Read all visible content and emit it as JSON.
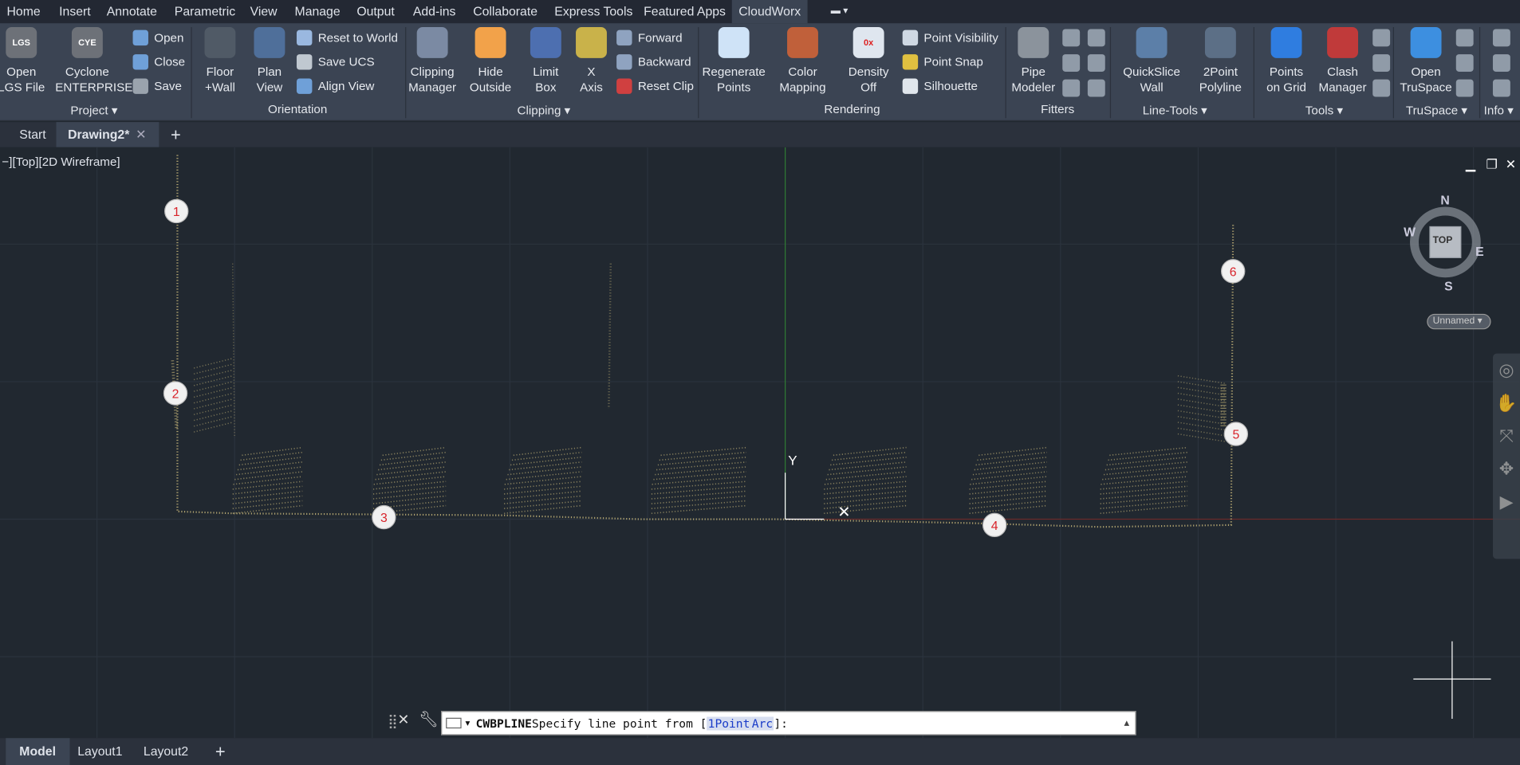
{
  "menu": {
    "items": [
      "Home",
      "Insert",
      "Annotate",
      "Parametric",
      "View",
      "Manage",
      "Output",
      "Add-ins",
      "Collaborate",
      "Express Tools",
      "Featured Apps",
      "CloudWorx"
    ],
    "active": "CloudWorx"
  },
  "ribbon": {
    "panels": [
      {
        "label": "Project ▾"
      },
      {
        "label": "Orientation"
      },
      {
        "label": "Clipping ▾"
      },
      {
        "label": "Rendering"
      },
      {
        "label": "Fitters"
      },
      {
        "label": "Line-Tools ▾"
      },
      {
        "label": "Tools ▾"
      },
      {
        "label": "TruSpace ▾"
      },
      {
        "label": "Info ▾"
      }
    ],
    "big_buttons": [
      {
        "l1": "Open",
        "l2": "LGS File",
        "icon": "lgs-icon",
        "badge": "LGS",
        "color": "#6d7178"
      },
      {
        "l1": "Cyclone",
        "l2": "ENTERPRISE",
        "icon": "cyclone-icon",
        "badge": "CYE",
        "color": "#6d7178"
      },
      {
        "l1": "Floor",
        "l2": "+Wall",
        "icon": "floor-wall-icon",
        "badge": "",
        "color": "#505a66"
      },
      {
        "l1": "Plan",
        "l2": "View",
        "icon": "plan-view-icon",
        "badge": "",
        "color": "#4f6f9a"
      },
      {
        "l1": "Clipping",
        "l2": "Manager",
        "icon": "clipping-manager-icon",
        "badge": "",
        "color": "#7b8aa3"
      },
      {
        "l1": "Hide",
        "l2": "Outside",
        "icon": "hide-outside-icon",
        "badge": "",
        "color": "#f2a24a"
      },
      {
        "l1": "Limit",
        "l2": "Box",
        "icon": "limit-box-icon",
        "badge": "",
        "color": "#4d6fb0"
      },
      {
        "l1": "X",
        "l2": "Axis",
        "icon": "x-axis-icon",
        "badge": "",
        "color": "#c9b24a"
      },
      {
        "l1": "Regenerate",
        "l2": "Points",
        "icon": "regenerate-points-icon",
        "badge": "",
        "color": "#cfe3f7"
      },
      {
        "l1": "Color",
        "l2": "Mapping",
        "icon": "color-mapping-icon",
        "badge": "",
        "color": "#c0603a"
      },
      {
        "l1": "Density",
        "l2": "Off",
        "icon": "density-off-icon",
        "badge": "0x",
        "color": "#dfe6ef"
      },
      {
        "l1": "Pipe",
        "l2": "Modeler",
        "icon": "pipe-modeler-icon",
        "badge": "",
        "color": "#8b939c"
      },
      {
        "l1": "QuickSlice",
        "l2": "Wall",
        "icon": "quickslice-wall-icon",
        "badge": "",
        "color": "#5c7fa8"
      },
      {
        "l1": "2Point",
        "l2": "Polyline",
        "icon": "polyline-icon",
        "badge": "",
        "color": "#5c6f86"
      },
      {
        "l1": "Points",
        "l2": "on Grid",
        "icon": "points-on-grid-icon",
        "badge": "",
        "color": "#2f7de0"
      },
      {
        "l1": "Clash",
        "l2": "Manager",
        "icon": "clash-manager-icon",
        "badge": "",
        "color": "#c03a3a"
      },
      {
        "l1": "Open",
        "l2": "TruSpace",
        "icon": "truspace-icon",
        "badge": "",
        "color": "#3d8fe0"
      }
    ],
    "small_buttons": [
      {
        "label": "Open",
        "icon": "open-icon"
      },
      {
        "label": "Close",
        "icon": "close-file-icon"
      },
      {
        "label": "Save",
        "icon": "save-icon"
      },
      {
        "label": "Reset to World",
        "icon": "reset-world-icon"
      },
      {
        "label": "Save UCS",
        "icon": "save-ucs-icon"
      },
      {
        "label": "Align View",
        "icon": "align-view-icon"
      },
      {
        "label": "Forward",
        "icon": "forward-icon"
      },
      {
        "label": "Backward",
        "icon": "backward-icon"
      },
      {
        "label": "Reset Clip",
        "icon": "reset-clip-icon"
      },
      {
        "label": "Point Visibility",
        "icon": "point-visibility-icon"
      },
      {
        "label": "Point Snap",
        "icon": "point-snap-icon"
      },
      {
        "label": "Silhouette",
        "icon": "silhouette-icon"
      }
    ]
  },
  "file_tabs": {
    "start": "Start",
    "drawing": "Drawing2*",
    "close": "✕",
    "add": "+"
  },
  "viewport": {
    "label": "−][Top][2D Wireframe]",
    "markers": [
      "1",
      "2",
      "3",
      "4",
      "5",
      "6"
    ],
    "viewcube": {
      "top": "TOP",
      "n": "N",
      "s": "S",
      "e": "E",
      "w": "W",
      "ucs": "Unnamed"
    },
    "axis_y": "Y"
  },
  "command": {
    "name": "CWBPLINE",
    "prompt": " Specify line point from [",
    "opt1": "1Point",
    "opt2": "Arc",
    "end": "]:"
  },
  "layout_tabs": {
    "model": "Model",
    "l1": "Layout1",
    "l2": "Layout2",
    "add": "+"
  },
  "colors": {
    "accent": "#3b4453",
    "cloud": "#c8b77a",
    "marker_text": "#d8232a"
  }
}
